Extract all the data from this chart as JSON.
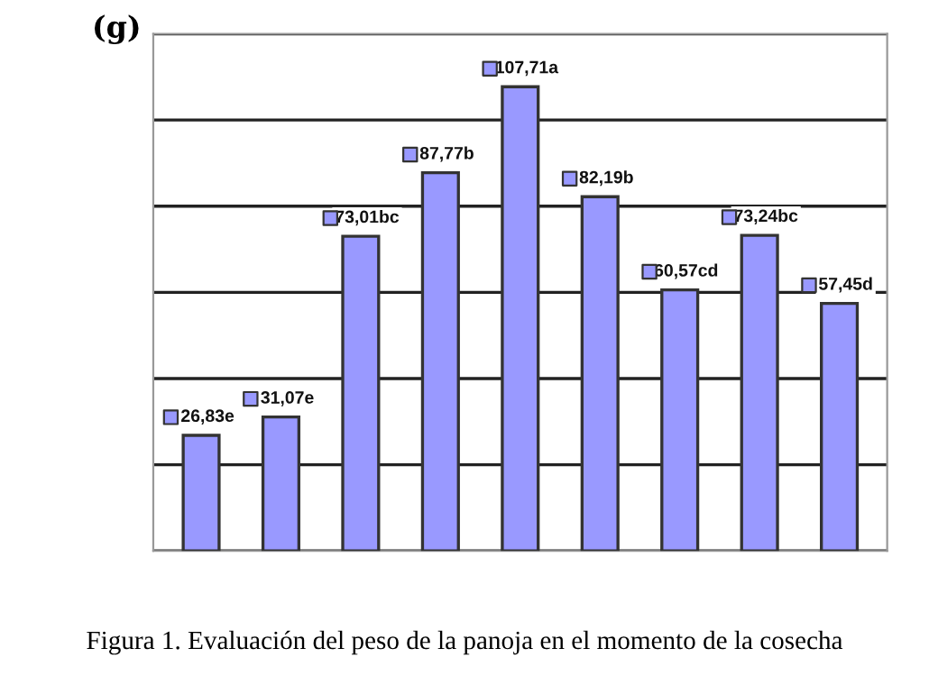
{
  "chart_data": {
    "type": "bar",
    "ylabel": "(g)",
    "categories": [
      null,
      null,
      null,
      null,
      null,
      null,
      null,
      null,
      null
    ],
    "values": [
      26.83,
      31.07,
      73.01,
      87.77,
      107.71,
      82.19,
      60.57,
      73.24,
      57.45
    ],
    "value_labels": [
      "26,83e",
      "31,07e",
      "73,01bc",
      "87,77b",
      "107,71a",
      "82,19b",
      "60,57cd",
      "73,24bc",
      "57,45d"
    ],
    "color": "#9999ff",
    "ylim": [
      0,
      120
    ],
    "yticks": [
      {
        "value": 0,
        "label": null
      },
      {
        "value": 20,
        "label": null
      },
      {
        "value": 40,
        "label": null
      },
      {
        "value": 60,
        "label": null
      },
      {
        "value": 80,
        "label": null
      },
      {
        "value": 100,
        "label": null
      },
      {
        "value": 120,
        "label": null
      }
    ],
    "grid": "y",
    "annotations": [
      "Figura 1. Evaluación del peso de la panoja en el momento de la cosecha"
    ]
  }
}
